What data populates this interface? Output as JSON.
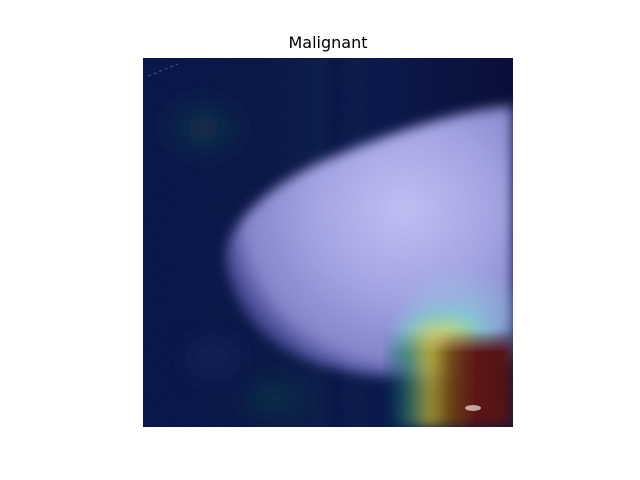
{
  "figure": {
    "title": "Malignant"
  },
  "colors": {
    "background": "#ffffff",
    "heatmap_low": "#020845",
    "heatmap_mid": "#7fe0d7",
    "heatmap_high": "#6b0b12",
    "tissue": "#b8b8f2"
  }
}
